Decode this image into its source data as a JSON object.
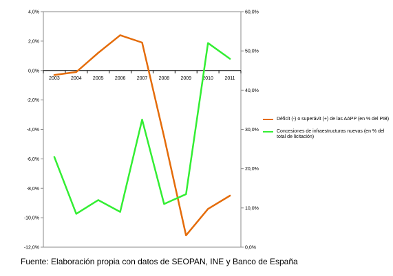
{
  "chart_data": {
    "type": "line",
    "x": [
      "2003",
      "2004",
      "2005",
      "2006",
      "2007",
      "2008",
      "2009",
      "2010",
      "2011"
    ],
    "y_left": {
      "ylim": [
        -12,
        4
      ],
      "ticks": [
        "4,0%",
        "2,0%",
        "0,0%",
        "-2,0%",
        "-4,0%",
        "-6,0%",
        "-8,0%",
        "-10,0%",
        "-12,0%"
      ],
      "tick_values": [
        4,
        2,
        0,
        -2,
        -4,
        -6,
        -8,
        -10,
        -12
      ]
    },
    "y_right": {
      "ylim": [
        0,
        60
      ],
      "ticks": [
        "60,0%",
        "50,0%",
        "40,0%",
        "30,0%",
        "20,0%",
        "10,0%",
        "0,0%"
      ],
      "tick_values": [
        60,
        50,
        40,
        30,
        20,
        10,
        0
      ]
    },
    "series": [
      {
        "name": "Déficit (-) o superávit (+) de las AAPP (en % del PIB)",
        "axis": "left",
        "color": "#e46c0a",
        "values": [
          -0.3,
          -0.1,
          1.2,
          2.4,
          1.9,
          -4.5,
          -11.2,
          -9.4,
          -8.5
        ]
      },
      {
        "name": "Concesiones de infraestructuras nuevas (en % del total de licitación)",
        "axis": "right",
        "color": "#33ee33",
        "values": [
          23.0,
          8.5,
          12.0,
          9.0,
          32.5,
          11.0,
          13.5,
          52.0,
          48.0
        ]
      }
    ],
    "grid": false,
    "legend_position": "right"
  },
  "source_note": "Fuente: Elaboración propia con datos de SEOPAN, INE y Banco de España"
}
